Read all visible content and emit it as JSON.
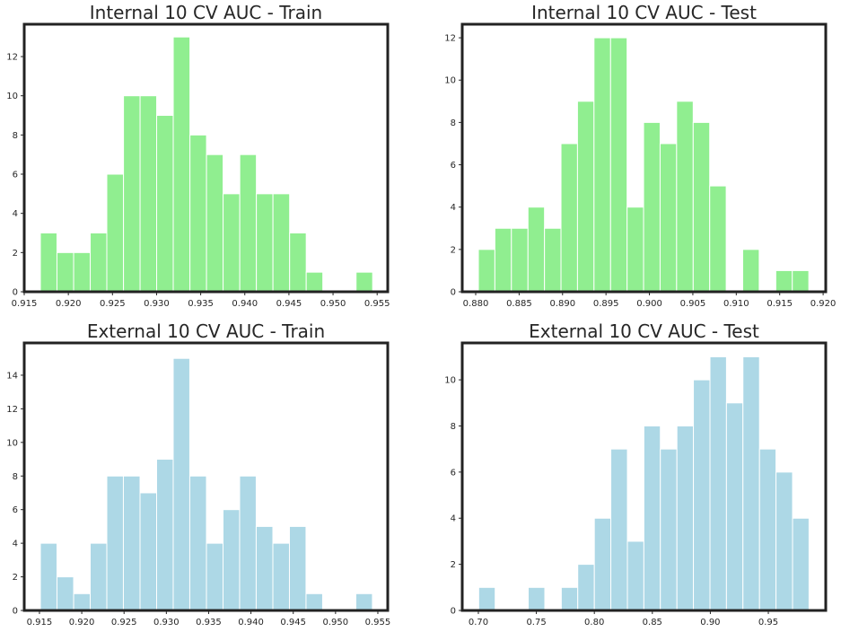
{
  "chart_data": [
    {
      "type": "histogram",
      "title": "Internal 10 CV AUC - Train",
      "color": "#90ee90",
      "bins": [
        0.91683,
        0.91871,
        0.9206,
        0.92248,
        0.92436,
        0.92625,
        0.92813,
        0.93001,
        0.93189,
        0.93378,
        0.93566,
        0.93754,
        0.93943,
        0.94131,
        0.94319,
        0.94508,
        0.94696,
        0.94884,
        0.95072,
        0.95261,
        0.95449
      ],
      "counts": [
        3,
        2,
        2,
        3,
        6,
        10,
        10,
        9,
        13,
        8,
        7,
        5,
        7,
        5,
        5,
        3,
        1,
        0,
        0,
        1
      ],
      "xlim": [
        0.915,
        0.9562
      ],
      "ylim": [
        0,
        13.65
      ],
      "xticks": [
        0.915,
        {
          "value": 0.92,
          "label": "0.920"
        },
        0.925,
        {
          "value": 0.93,
          "label": "0.930"
        },
        0.935,
        {
          "value": 0.94,
          "label": "0.940"
        },
        0.945,
        {
          "value": 0.95,
          "label": "0.950"
        },
        0.955
      ],
      "yticks": [
        0,
        2,
        4,
        6,
        8,
        10,
        12
      ]
    },
    {
      "type": "histogram",
      "title": "Internal 10 CV AUC - Test",
      "color": "#90ee90",
      "bins": [
        0.88031,
        0.88221,
        0.88411,
        0.88602,
        0.88792,
        0.88982,
        0.89172,
        0.89362,
        0.89553,
        0.89743,
        0.89933,
        0.90123,
        0.90313,
        0.90504,
        0.90694,
        0.90884,
        0.91074,
        0.91264,
        0.91455,
        0.91645,
        0.91835
      ],
      "counts": [
        2,
        3,
        3,
        4,
        3,
        7,
        9,
        12,
        12,
        4,
        8,
        7,
        9,
        8,
        5,
        0,
        2,
        0,
        1,
        1
      ],
      "xlim": [
        0.87845,
        0.9203
      ],
      "ylim": [
        0,
        12.64
      ],
      "xticks": [
        {
          "value": 0.88,
          "label": "0.880"
        },
        0.885,
        {
          "value": 0.89,
          "label": "0.890"
        },
        0.895,
        {
          "value": 0.9,
          "label": "0.900"
        },
        0.905,
        {
          "value": 0.91,
          "label": "0.910"
        },
        0.915,
        {
          "value": 0.92,
          "label": "0.920"
        }
      ],
      "yticks": [
        0,
        2,
        4,
        6,
        8,
        10,
        12
      ]
    },
    {
      "type": "histogram",
      "title": "External 10 CV AUC - Train",
      "color": "#add8e6",
      "bins": [
        0.91511,
        0.91707,
        0.91904,
        0.921,
        0.92296,
        0.92492,
        0.92689,
        0.92885,
        0.93081,
        0.93277,
        0.93474,
        0.9367,
        0.93866,
        0.94062,
        0.94259,
        0.94455,
        0.94651,
        0.94847,
        0.95044,
        0.9524,
        0.95436
      ],
      "counts": [
        4,
        2,
        1,
        4,
        8,
        8,
        7,
        9,
        15,
        8,
        4,
        6,
        8,
        5,
        4,
        5,
        1,
        0,
        0,
        1
      ],
      "xlim": [
        0.9132,
        0.95617
      ],
      "ylim": [
        0,
        15.92
      ],
      "xticks": [
        0.915,
        {
          "value": 0.92,
          "label": "0.920"
        },
        0.925,
        {
          "value": 0.93,
          "label": "0.930"
        },
        0.935,
        {
          "value": 0.94,
          "label": "0.940"
        },
        0.945,
        {
          "value": 0.95,
          "label": "0.950"
        },
        0.955
      ],
      "yticks": [
        0,
        2,
        4,
        6,
        8,
        10,
        12,
        14
      ]
    },
    {
      "type": "histogram",
      "title": "External 10 CV AUC - Test",
      "color": "#add8e6",
      "bins": [
        0.7003,
        0.7145,
        0.7288,
        0.743,
        0.7573,
        0.7715,
        0.7857,
        0.8,
        0.8142,
        0.8285,
        0.8427,
        0.8569,
        0.8712,
        0.8854,
        0.8997,
        0.9139,
        0.9281,
        0.9424,
        0.9566,
        0.9709,
        0.9851
      ],
      "counts": [
        1,
        0,
        0,
        1,
        0,
        1,
        2,
        4,
        7,
        3,
        8,
        7,
        8,
        10,
        11,
        9,
        11,
        7,
        6,
        4
      ],
      "xlim": [
        0.6861,
        0.9995
      ],
      "ylim": [
        0,
        11.6
      ],
      "xticks": [
        {
          "value": 0.7,
          "label": "0.70"
        },
        0.75,
        {
          "value": 0.8,
          "label": "0.80"
        },
        0.85,
        {
          "value": 0.9,
          "label": "0.90"
        },
        0.95
      ],
      "yticks": [
        0,
        2,
        4,
        6,
        8,
        10
      ]
    }
  ]
}
